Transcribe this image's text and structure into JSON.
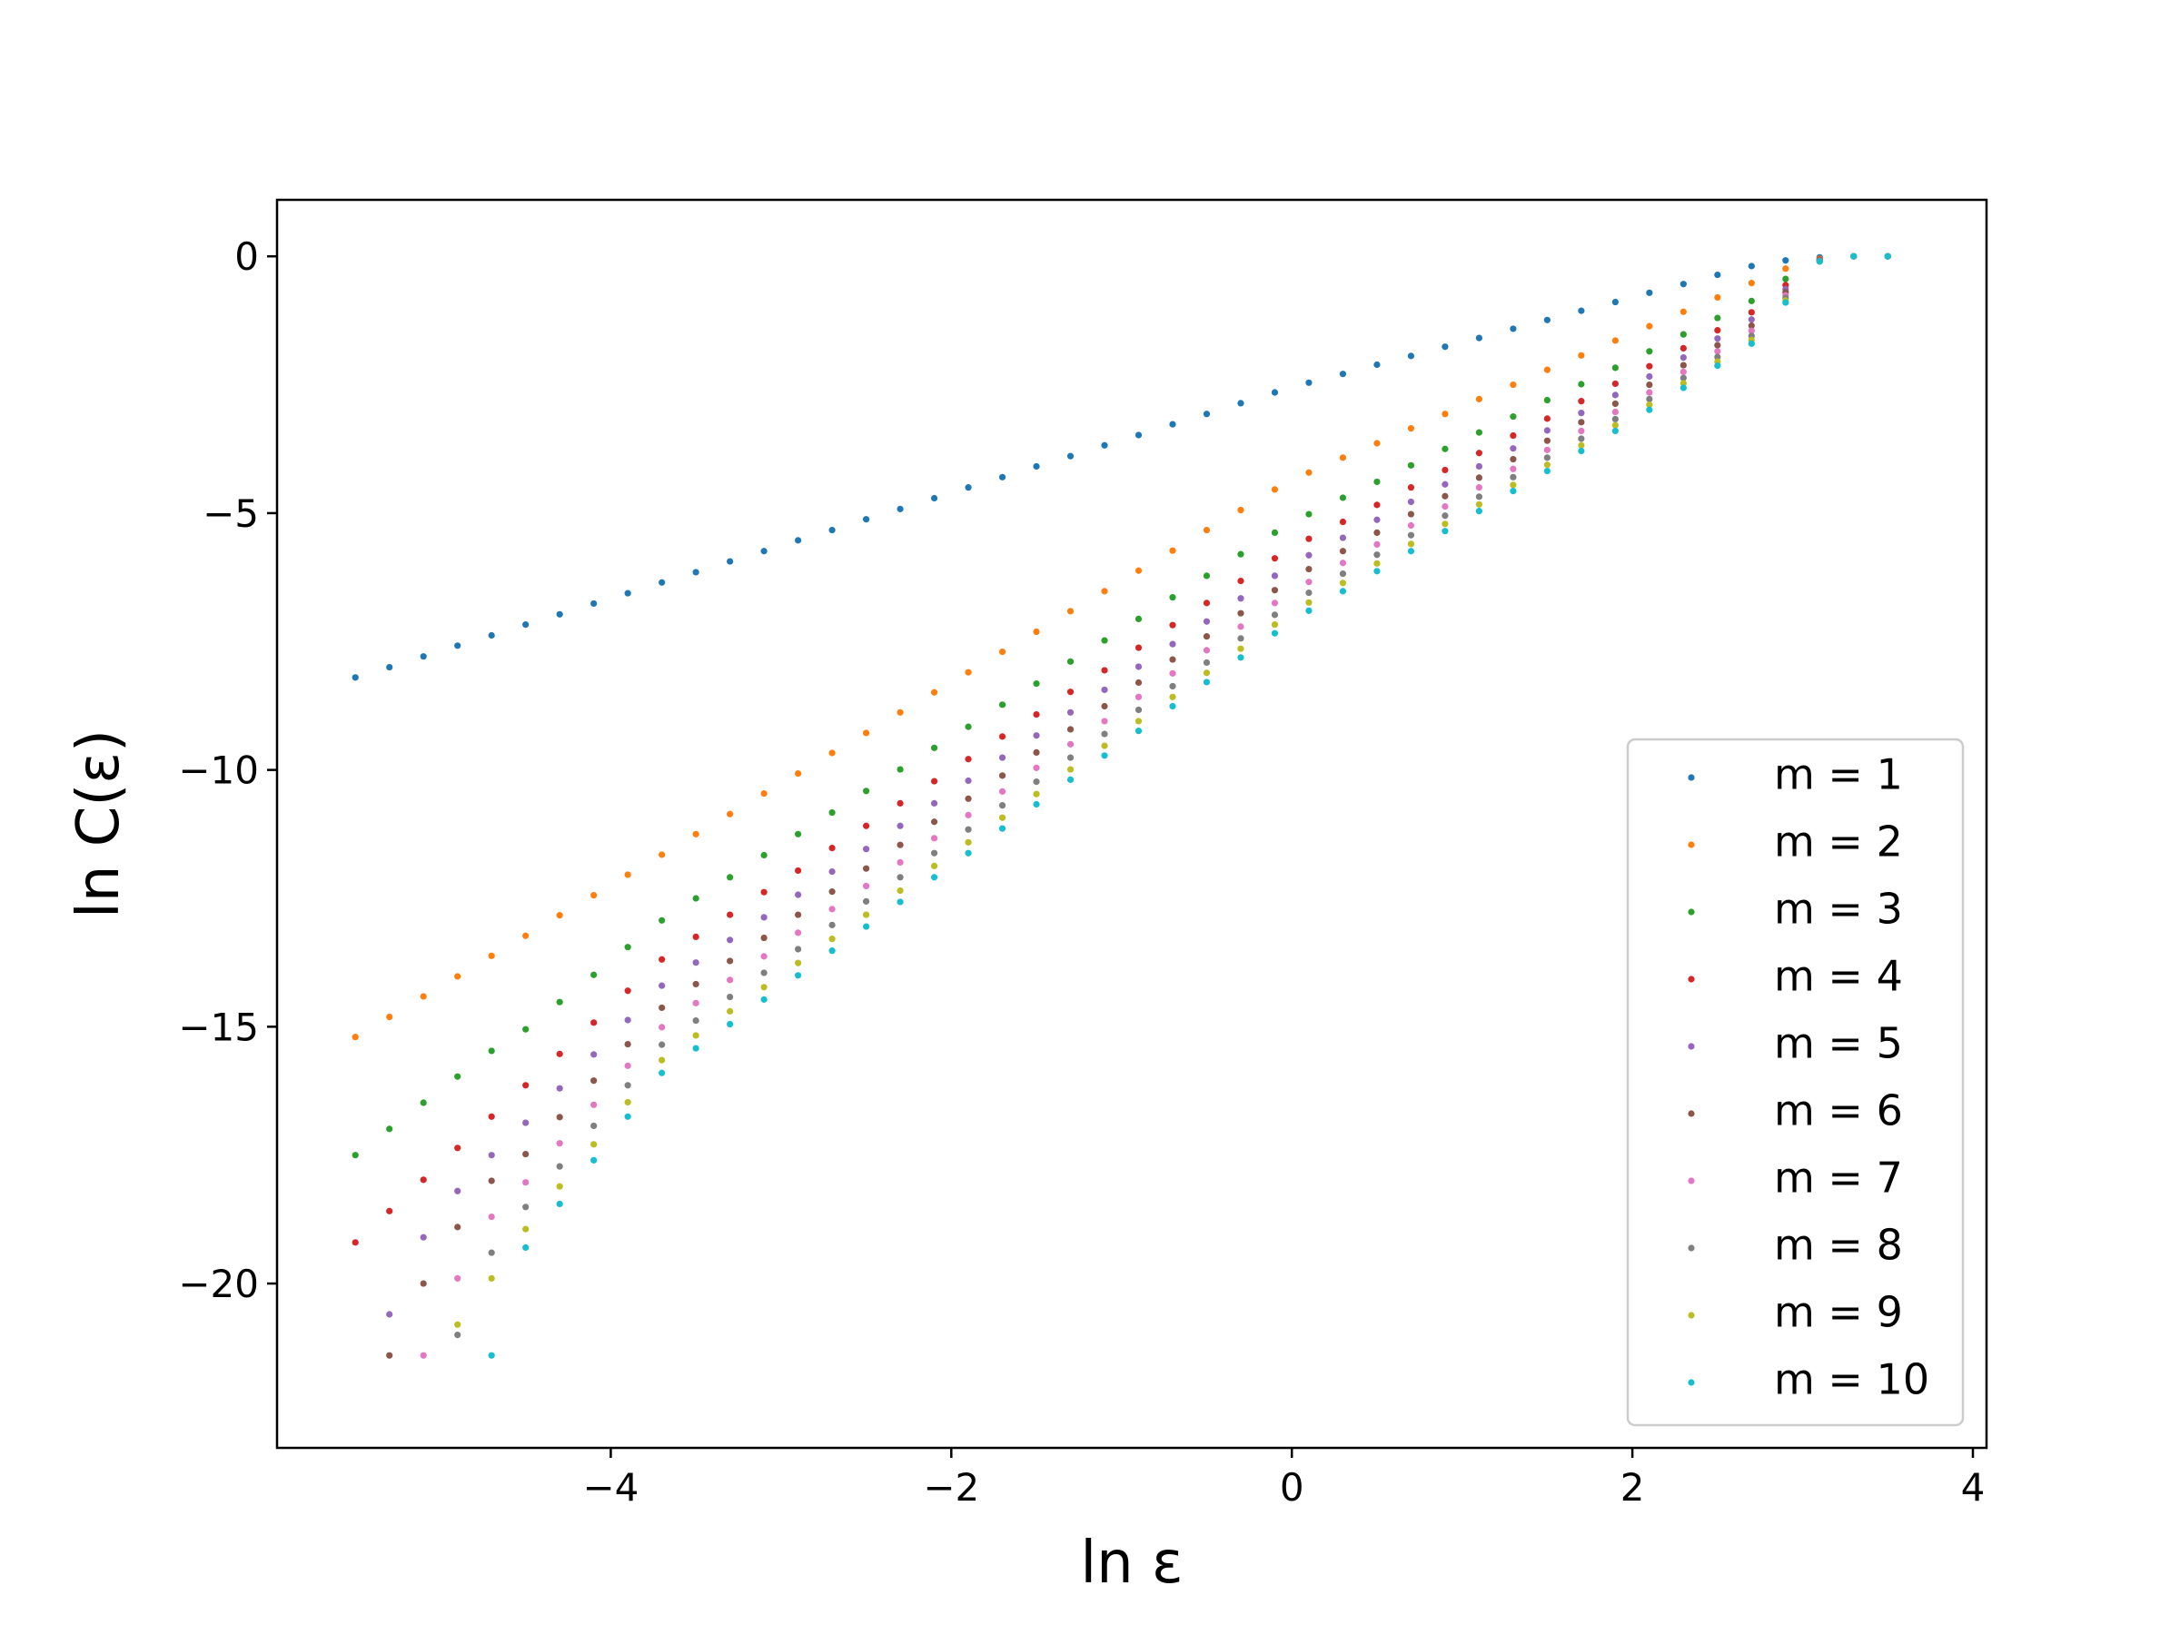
{
  "chart_data": {
    "type": "scatter",
    "xlabel": "ln ε",
    "ylabel": "ln C(ε)",
    "xlim": [
      -5.96,
      4.08
    ],
    "ylim": [
      -23.2,
      1.1
    ],
    "xticks": [
      {
        "value": -4,
        "label": "−4"
      },
      {
        "value": -2,
        "label": "−2"
      },
      0,
      2,
      4
    ],
    "yticks": [
      0,
      {
        "value": -5,
        "label": "−5"
      },
      {
        "value": -10,
        "label": "−10"
      },
      {
        "value": -15,
        "label": "−15"
      },
      {
        "value": -20,
        "label": "−20"
      }
    ],
    "legend": "lower right",
    "x": [
      -5.5,
      -5.3,
      -5.1,
      -4.9,
      -4.7,
      -4.5,
      -4.3,
      -4.1,
      -3.9,
      -3.7,
      -3.5,
      -3.3,
      -3.1,
      -2.9,
      -2.7,
      -2.5,
      -2.3,
      -2.1,
      -1.9,
      -1.7,
      -1.5,
      -1.3,
      -1.1,
      -0.9,
      -0.7,
      -0.5,
      -0.3,
      -0.1,
      0.1,
      0.3,
      0.5,
      0.7,
      0.9,
      1.1,
      1.3,
      1.5,
      1.7,
      1.9,
      2.1,
      2.3,
      2.5,
      2.7,
      2.9,
      3.1,
      3.3,
      3.5
    ],
    "series": [
      {
        "name": "m = 1",
        "color": "#1f77b4",
        "values": [
          -8.2,
          -8.0,
          -7.79,
          -7.58,
          -7.38,
          -7.17,
          -6.97,
          -6.76,
          -6.56,
          -6.35,
          -6.15,
          -5.94,
          -5.74,
          -5.53,
          -5.33,
          -5.12,
          -4.92,
          -4.71,
          -4.5,
          -4.3,
          -4.09,
          -3.89,
          -3.68,
          -3.48,
          -3.27,
          -3.07,
          -2.86,
          -2.65,
          -2.46,
          -2.29,
          -2.11,
          -1.94,
          -1.76,
          -1.59,
          -1.41,
          -1.24,
          -1.06,
          -0.89,
          -0.71,
          -0.54,
          -0.36,
          -0.19,
          -0.08,
          -0.02,
          0,
          0
        ]
      },
      {
        "name": "m = 2",
        "color": "#ff7f0e",
        "values": [
          -15.2,
          -14.81,
          -14.41,
          -14.02,
          -13.62,
          -13.23,
          -12.83,
          -12.44,
          -12.04,
          -11.65,
          -11.25,
          -10.86,
          -10.46,
          -10.07,
          -9.67,
          -9.28,
          -8.88,
          -8.49,
          -8.1,
          -7.7,
          -7.31,
          -6.91,
          -6.52,
          -6.12,
          -5.73,
          -5.33,
          -4.94,
          -4.54,
          -4.21,
          -3.92,
          -3.64,
          -3.35,
          -3.07,
          -2.78,
          -2.5,
          -2.21,
          -1.93,
          -1.64,
          -1.36,
          -1.08,
          -0.8,
          -0.52,
          -0.24,
          -0.05,
          0,
          0
        ]
      },
      {
        "name": "m = 3",
        "color": "#2ca02c",
        "values": [
          -17.5,
          -16.99,
          -16.48,
          -15.97,
          -15.47,
          -15.05,
          -14.52,
          -13.99,
          -13.45,
          -12.93,
          -12.5,
          -12.09,
          -11.66,
          -11.25,
          -10.83,
          -10.41,
          -9.99,
          -9.57,
          -9.16,
          -8.73,
          -8.32,
          -7.89,
          -7.48,
          -7.06,
          -6.64,
          -6.22,
          -5.8,
          -5.38,
          -5.02,
          -4.7,
          -4.39,
          -4.07,
          -3.75,
          -3.43,
          -3.12,
          -2.8,
          -2.49,
          -2.17,
          -1.85,
          -1.52,
          -1.2,
          -0.87,
          -0.44,
          -0.07,
          0,
          0
        ]
      },
      {
        "name": "m = 4",
        "color": "#d62728",
        "values": [
          -19.2,
          -18.59,
          -17.98,
          -17.36,
          -16.75,
          -16.14,
          -15.53,
          -14.92,
          -14.3,
          -13.69,
          -13.25,
          -12.82,
          -12.38,
          -11.96,
          -11.52,
          -11.09,
          -10.65,
          -10.22,
          -9.79,
          -9.35,
          -8.92,
          -8.48,
          -8.06,
          -7.62,
          -7.18,
          -6.75,
          -6.32,
          -5.88,
          -5.5,
          -5.17,
          -4.84,
          -4.5,
          -4.16,
          -3.83,
          -3.49,
          -3.16,
          -2.82,
          -2.48,
          -2.14,
          -1.79,
          -1.44,
          -1.09,
          -0.56,
          -0.07,
          0,
          0
        ]
      },
      {
        "name": "m = 5",
        "color": "#9467bd",
        "values": [
          null,
          -20.6,
          -19.1,
          -18.2,
          -17.5,
          -16.87,
          -16.2,
          -15.54,
          -14.87,
          -14.2,
          -13.75,
          -13.31,
          -12.87,
          -12.43,
          -11.98,
          -11.54,
          -11.09,
          -10.65,
          -10.21,
          -9.76,
          -9.33,
          -8.88,
          -8.44,
          -7.99,
          -7.55,
          -7.11,
          -6.66,
          -6.22,
          -5.82,
          -5.48,
          -5.13,
          -4.78,
          -4.44,
          -4.09,
          -3.74,
          -3.39,
          -3.05,
          -2.7,
          -2.34,
          -1.97,
          -1.6,
          -1.23,
          -0.64,
          -0.08,
          0,
          0
        ]
      },
      {
        "name": "m = 6",
        "color": "#8c564b",
        "values": [
          null,
          -21.4,
          -20.0,
          -18.9,
          -18.0,
          -17.48,
          -16.76,
          -16.05,
          -15.34,
          -14.63,
          -14.17,
          -13.72,
          -13.27,
          -12.82,
          -12.37,
          -11.92,
          -11.46,
          -11.01,
          -10.56,
          -10.11,
          -9.66,
          -9.21,
          -8.76,
          -8.3,
          -7.85,
          -7.4,
          -6.95,
          -6.5,
          -6.09,
          -5.74,
          -5.38,
          -5.02,
          -4.67,
          -4.31,
          -3.95,
          -3.59,
          -3.23,
          -2.87,
          -2.5,
          -2.12,
          -1.73,
          -1.35,
          -0.7,
          -0.09,
          0,
          0
        ]
      },
      {
        "name": "m = 7",
        "color": "#e377c2",
        "values": [
          null,
          null,
          -21.4,
          -19.9,
          -18.7,
          -18.03,
          -17.27,
          -16.52,
          -15.76,
          -15.01,
          -14.54,
          -14.09,
          -13.63,
          -13.17,
          -12.71,
          -12.26,
          -11.8,
          -11.33,
          -10.88,
          -10.42,
          -9.96,
          -9.5,
          -9.05,
          -8.58,
          -8.12,
          -7.67,
          -7.21,
          -6.75,
          -6.34,
          -5.97,
          -5.61,
          -5.24,
          -4.87,
          -4.5,
          -4.14,
          -3.77,
          -3.4,
          -3.03,
          -2.65,
          -2.25,
          -1.85,
          -1.45,
          -0.76,
          -0.09,
          0,
          0
        ]
      },
      {
        "name": "m = 8",
        "color": "#7f7f7f",
        "values": [
          null,
          null,
          null,
          -21.0,
          -19.4,
          -18.51,
          -17.72,
          -16.93,
          -16.14,
          -15.35,
          -14.88,
          -14.42,
          -13.95,
          -13.49,
          -13.02,
          -12.56,
          -12.09,
          -11.62,
          -11.16,
          -10.69,
          -10.23,
          -9.76,
          -9.3,
          -8.83,
          -8.37,
          -7.91,
          -7.44,
          -6.98,
          -6.55,
          -6.18,
          -5.81,
          -5.43,
          -5.05,
          -4.68,
          -4.3,
          -3.92,
          -3.55,
          -3.17,
          -2.78,
          -2.37,
          -1.96,
          -1.55,
          -0.81,
          -0.09,
          0,
          0
        ]
      },
      {
        "name": "m = 9",
        "color": "#bcbd22",
        "values": [
          null,
          null,
          null,
          -20.8,
          -19.9,
          -18.94,
          -18.11,
          -17.29,
          -16.47,
          -15.65,
          -15.17,
          -14.7,
          -14.23,
          -13.76,
          -13.29,
          -12.82,
          -12.35,
          -11.87,
          -11.41,
          -10.93,
          -10.47,
          -9.99,
          -9.53,
          -9.05,
          -8.58,
          -8.11,
          -7.64,
          -7.17,
          -6.74,
          -6.36,
          -5.98,
          -5.6,
          -5.21,
          -4.83,
          -4.45,
          -4.06,
          -3.68,
          -3.29,
          -2.89,
          -2.47,
          -2.05,
          -1.63,
          -0.86,
          -0.1,
          0,
          0
        ]
      },
      {
        "name": "m = 10",
        "color": "#17becf",
        "values": [
          null,
          null,
          null,
          null,
          -21.4,
          -19.3,
          -18.45,
          -17.6,
          -16.75,
          -15.9,
          -15.42,
          -14.95,
          -14.47,
          -14.0,
          -13.52,
          -13.05,
          -12.57,
          -12.09,
          -11.62,
          -11.14,
          -10.67,
          -10.19,
          -9.72,
          -9.24,
          -8.76,
          -8.29,
          -7.81,
          -7.34,
          -6.9,
          -6.52,
          -6.13,
          -5.74,
          -5.35,
          -4.96,
          -4.57,
          -4.18,
          -3.79,
          -3.4,
          -2.99,
          -2.56,
          -2.13,
          -1.7,
          -0.9,
          -0.1,
          0,
          0
        ]
      }
    ]
  }
}
